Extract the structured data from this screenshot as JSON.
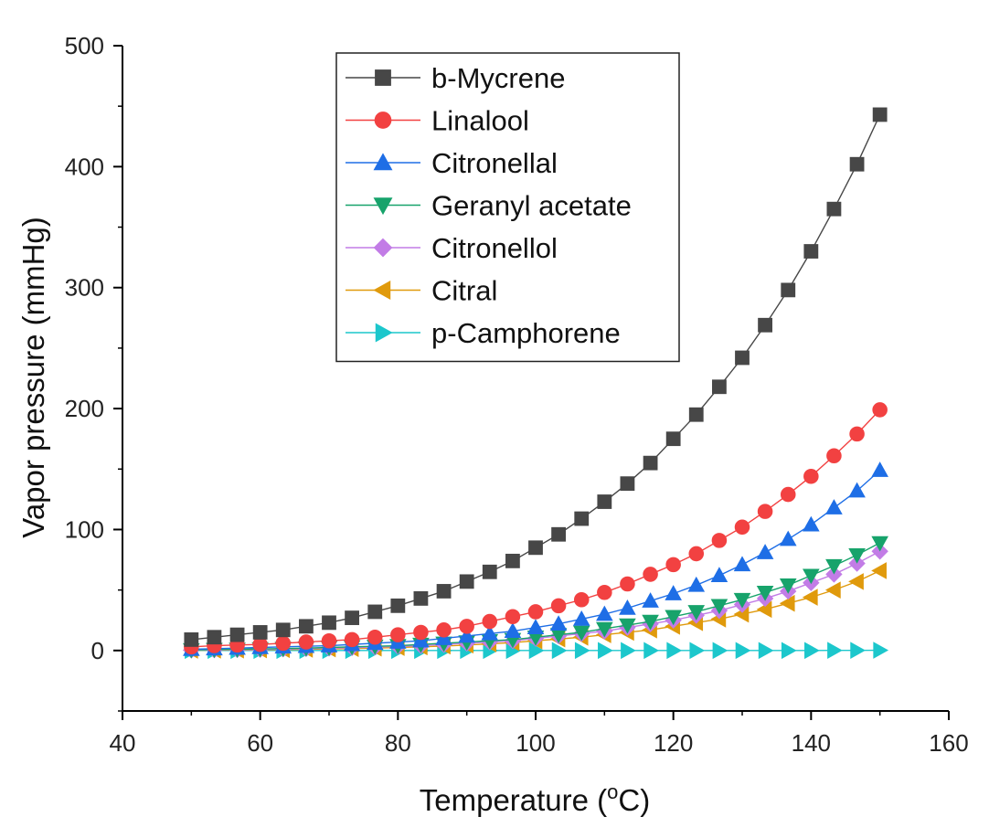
{
  "chart_data": {
    "type": "line",
    "xlabel": "Temperature (",
    "xlabel_sup": "o",
    "xlabel_end": "C)",
    "ylabel": "Vapor pressure (mmHg)",
    "xlim": [
      40,
      160
    ],
    "ylim": [
      -50,
      500
    ],
    "xticks": [
      40,
      60,
      80,
      100,
      120,
      140,
      160
    ],
    "yticks": [
      0,
      100,
      200,
      300,
      400,
      500
    ],
    "legend_position": "top-center",
    "x": [
      50,
      53.33,
      56.67,
      60,
      63.33,
      66.67,
      70,
      73.33,
      76.67,
      80,
      83.33,
      86.67,
      90,
      93.33,
      96.67,
      100,
      103.33,
      106.67,
      110,
      113.33,
      116.67,
      120,
      123.33,
      126.67,
      130,
      133.33,
      136.67,
      140,
      143.33,
      146.67,
      150
    ],
    "series": [
      {
        "name": "b-Mycrene",
        "color": "#474747",
        "marker": "square",
        "values": [
          9,
          11,
          13,
          15,
          17,
          20,
          23,
          27,
          32,
          37,
          43,
          49,
          57,
          65,
          74,
          85,
          96,
          109,
          123,
          138,
          155,
          175,
          195,
          218,
          242,
          269,
          298,
          330,
          365,
          402,
          443
        ]
      },
      {
        "name": "Linalool",
        "color": "#f24141",
        "marker": "circle",
        "values": [
          3,
          4,
          4.5,
          5,
          6,
          7,
          8,
          9,
          11,
          13,
          15,
          17,
          20,
          24,
          28,
          32,
          37,
          42,
          48,
          55,
          63,
          71,
          80,
          91,
          102,
          115,
          129,
          144,
          161,
          179,
          199
        ]
      },
      {
        "name": "Citronellal",
        "color": "#1e6ee6",
        "marker": "triangle-up",
        "values": [
          1,
          1.5,
          2,
          2.5,
          3,
          3.5,
          4,
          5,
          6,
          7,
          8,
          10,
          12,
          14,
          16,
          19,
          22,
          26,
          30,
          35,
          41,
          47,
          54,
          62,
          71,
          81,
          92,
          104,
          118,
          132,
          149
        ]
      },
      {
        "name": "Geranyl acetate",
        "color": "#17a36b",
        "marker": "triangle-down",
        "values": [
          0.5,
          0.8,
          1,
          1.3,
          1.6,
          2,
          2.5,
          3,
          3.5,
          4,
          5,
          6,
          7,
          8,
          9,
          11,
          13,
          15,
          18,
          21,
          24,
          28,
          32,
          37,
          42,
          48,
          54,
          62,
          70,
          79,
          89
        ]
      },
      {
        "name": "Citronellol",
        "color": "#c27ce6",
        "marker": "diamond",
        "values": [
          0.3,
          0.5,
          0.7,
          0.9,
          1.2,
          1.5,
          1.9,
          2.3,
          2.8,
          3.4,
          4,
          5,
          6,
          7,
          8,
          10,
          12,
          14,
          16,
          19,
          22,
          25,
          29,
          33,
          38,
          43,
          49,
          56,
          63,
          72,
          82
        ]
      },
      {
        "name": "Citral",
        "color": "#e09a0c",
        "marker": "triangle-left",
        "values": [
          0.2,
          0.3,
          0.4,
          0.6,
          0.8,
          1,
          1.3,
          1.6,
          2,
          2.5,
          3,
          3.7,
          4.5,
          5.5,
          6.5,
          8,
          9.5,
          11,
          13,
          15,
          17,
          20,
          23,
          26,
          30,
          34,
          39,
          44,
          50,
          57,
          66
        ]
      },
      {
        "name": "p-Camphorene",
        "color": "#1cc7cc",
        "marker": "triangle-right",
        "values": [
          0,
          0,
          0,
          0,
          0,
          0,
          0,
          0,
          0,
          0,
          0,
          0,
          0,
          0,
          0,
          0,
          0,
          0,
          0,
          0,
          0,
          0,
          0,
          0,
          0,
          0,
          0,
          0,
          0.1,
          0.1,
          0.2
        ]
      }
    ]
  }
}
